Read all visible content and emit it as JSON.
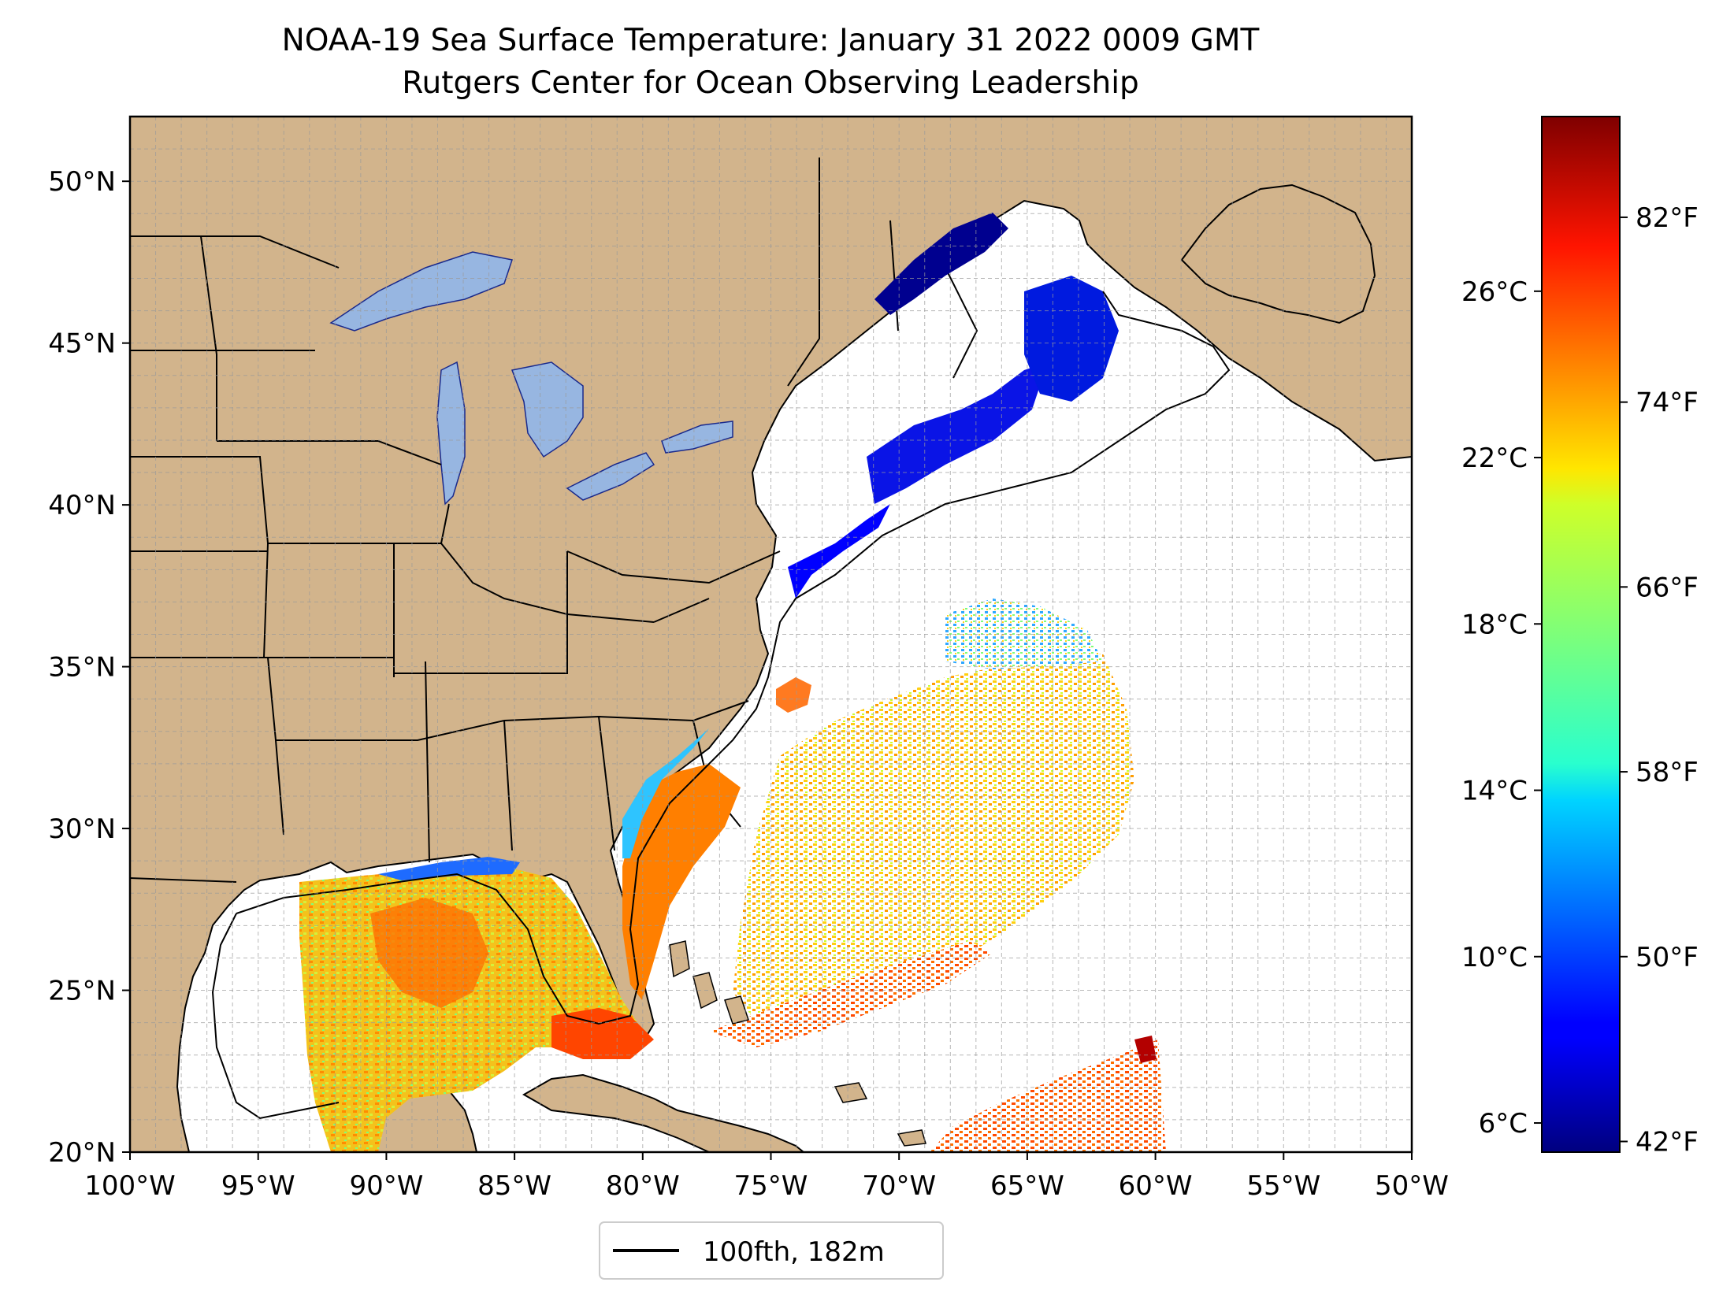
{
  "title": {
    "line1": "NOAA-19 Sea Surface Temperature: January 31 2022 0009 GMT",
    "line2": "Rutgers Center for Ocean Observing Leadership"
  },
  "map": {
    "lon_range": [
      -100,
      -50
    ],
    "lat_range": [
      20,
      52
    ],
    "lon_ticks": [
      {
        "value": -100,
        "label": "100°W"
      },
      {
        "value": -95,
        "label": "95°W"
      },
      {
        "value": -90,
        "label": "90°W"
      },
      {
        "value": -85,
        "label": "85°W"
      },
      {
        "value": -80,
        "label": "80°W"
      },
      {
        "value": -75,
        "label": "75°W"
      },
      {
        "value": -70,
        "label": "70°W"
      },
      {
        "value": -65,
        "label": "65°W"
      },
      {
        "value": -60,
        "label": "60°W"
      },
      {
        "value": -55,
        "label": "55°W"
      },
      {
        "value": -50,
        "label": "50°W"
      }
    ],
    "lat_ticks": [
      {
        "value": 20,
        "label": "20°N"
      },
      {
        "value": 25,
        "label": "25°N"
      },
      {
        "value": 30,
        "label": "30°N"
      },
      {
        "value": 35,
        "label": "35°N"
      },
      {
        "value": 40,
        "label": "40°N"
      },
      {
        "value": 45,
        "label": "45°N"
      },
      {
        "value": 50,
        "label": "50°N"
      }
    ],
    "gridlines": "dashed, 1° spacing",
    "land_color": "#d2b48c",
    "lake_color": "#97b6e1",
    "coast_color": "#000000"
  },
  "legend": {
    "line_label": "100fth, 182m",
    "line_color": "#000000",
    "placement": "bottom-center below map"
  },
  "colorbar": {
    "colormap": "jet",
    "celsius_ticks": [
      {
        "value": 6,
        "label": "6°C"
      },
      {
        "value": 10,
        "label": "10°C"
      },
      {
        "value": 14,
        "label": "14°C"
      },
      {
        "value": 18,
        "label": "18°C"
      },
      {
        "value": 22,
        "label": "22°C"
      },
      {
        "value": 26,
        "label": "26°C"
      }
    ],
    "fahrenheit_ticks": [
      {
        "value": 42,
        "label": "42°F"
      },
      {
        "value": 50,
        "label": "50°F"
      },
      {
        "value": 58,
        "label": "58°F"
      },
      {
        "value": 66,
        "label": "66°F"
      },
      {
        "value": 74,
        "label": "74°F"
      },
      {
        "value": 82,
        "label": "82°F"
      }
    ],
    "range_c": [
      5.3,
      30.2
    ]
  }
}
